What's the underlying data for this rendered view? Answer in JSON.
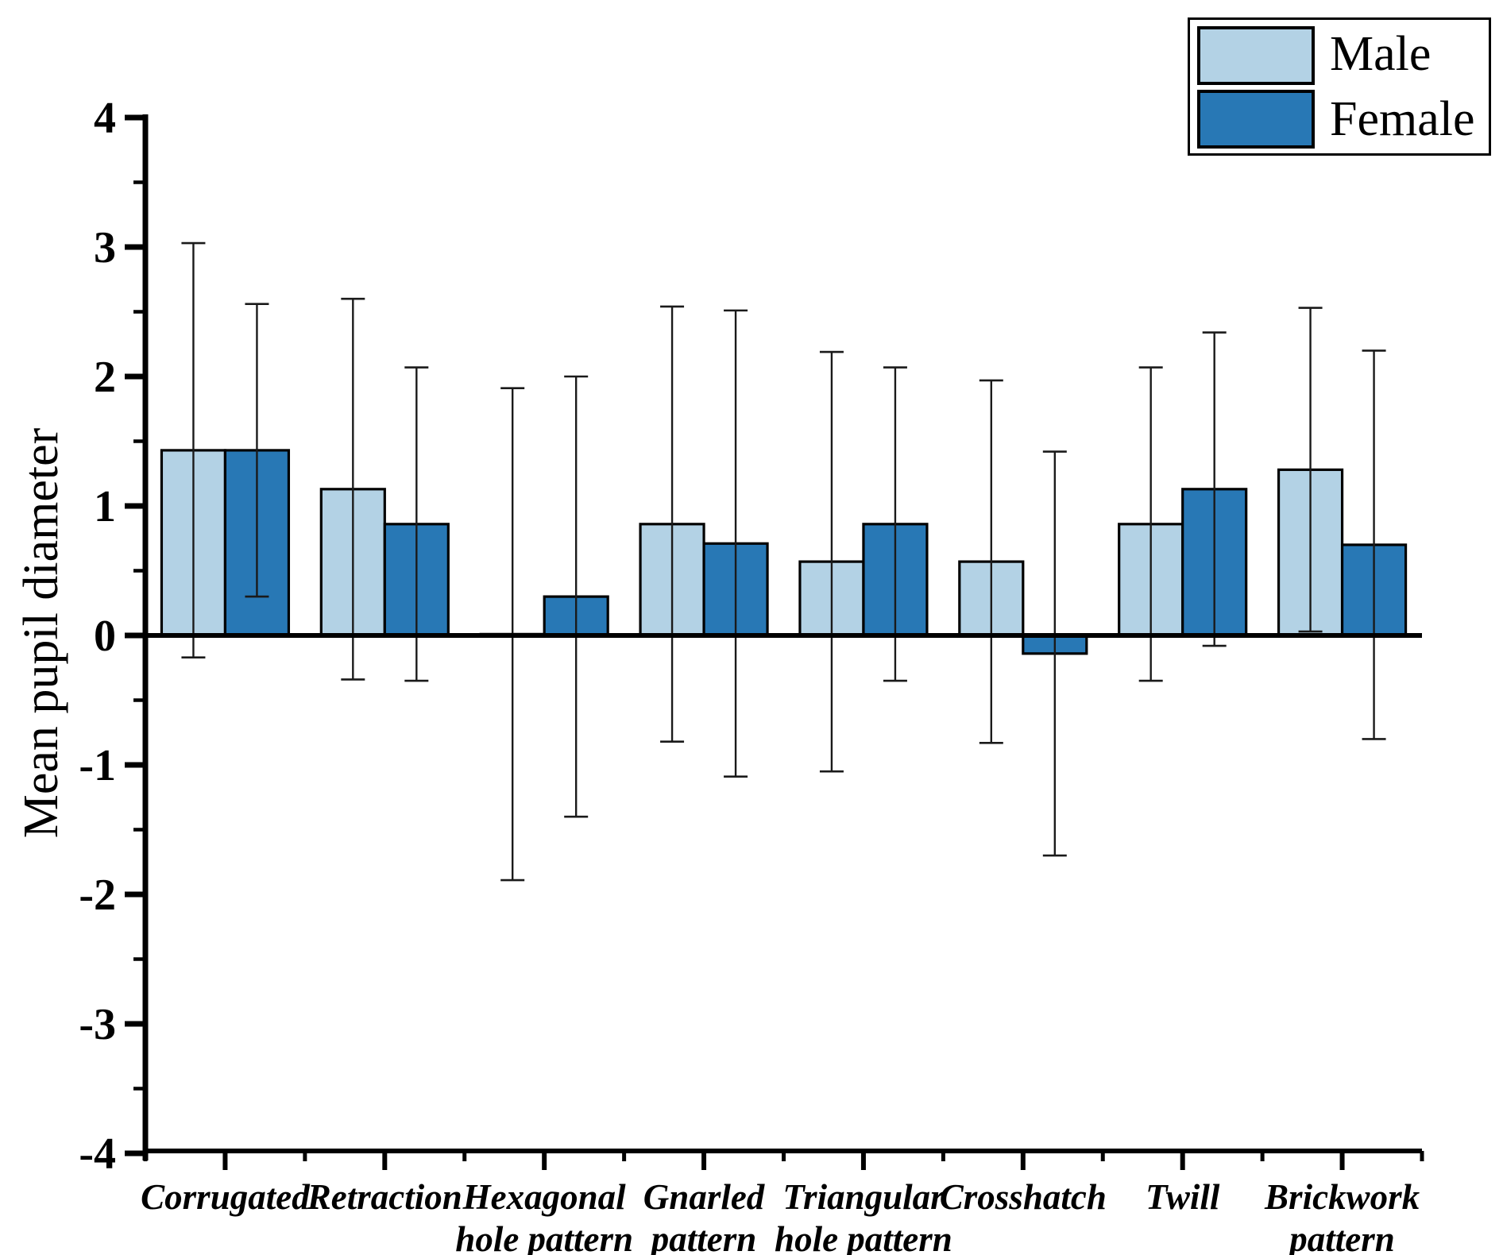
{
  "chart_data": {
    "type": "bar",
    "title": "",
    "ylabel": "Mean pupil diameter",
    "ylim": [
      -4,
      4
    ],
    "yticks": [
      4,
      3,
      2,
      1,
      0,
      -1,
      -2,
      -3,
      -4
    ],
    "minor_ytick_step": 0.5,
    "grid": false,
    "error_bars": "symmetric",
    "legend_position": "top-right",
    "bar_edge_color": "#000000",
    "error_bar_color": "#1a1a1a",
    "categories": [
      "Corrugated",
      "Retraction",
      "Hexagonal\nhole pattern",
      "Gnarled\npattern",
      "Triangular\nhole pattern",
      "Crosshatch",
      "Twill",
      "Brickwork\npattern"
    ],
    "series": [
      {
        "name": "Male",
        "color": "#B3D2E5",
        "values": [
          1.43,
          1.13,
          0.01,
          0.86,
          0.57,
          0.57,
          0.86,
          1.28
        ],
        "errors": [
          1.6,
          1.47,
          1.9,
          1.68,
          1.62,
          1.4,
          1.21,
          1.25
        ]
      },
      {
        "name": "Female",
        "color": "#2878B5",
        "values": [
          1.43,
          0.86,
          0.3,
          0.71,
          0.86,
          -0.14,
          1.13,
          0.7
        ],
        "errors": [
          1.13,
          1.21,
          1.7,
          1.8,
          1.21,
          1.56,
          1.21,
          1.5
        ]
      }
    ]
  }
}
